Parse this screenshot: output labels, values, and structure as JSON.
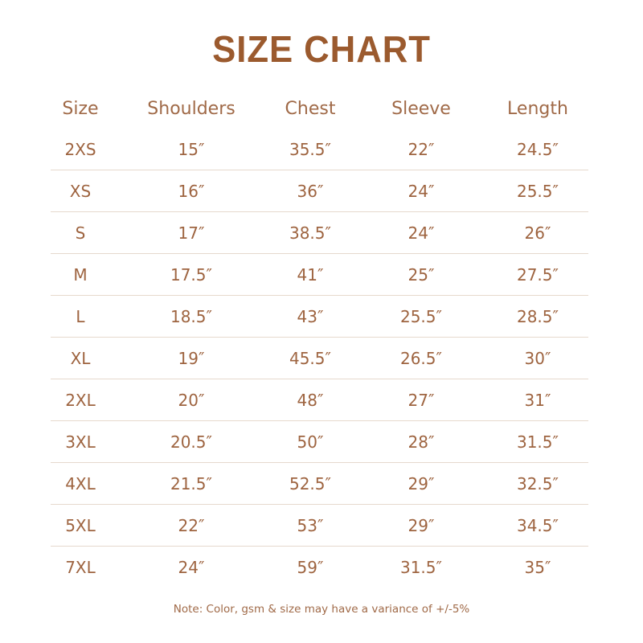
{
  "title": "SIZE CHART",
  "colors": {
    "text": "#9e6440",
    "title": "#9b5a2e",
    "divider": "#e6d9cd"
  },
  "table": {
    "headers": [
      "Size",
      "Shoulders",
      "Chest",
      "Sleeve",
      "Length"
    ],
    "rows": [
      [
        "2XS",
        "15″",
        "35.5″",
        "22″",
        "24.5″"
      ],
      [
        "XS",
        "16″",
        "36″",
        "24″",
        "25.5″"
      ],
      [
        "S",
        "17″",
        "38.5″",
        "24″",
        "26″"
      ],
      [
        "M",
        "17.5″",
        "41″",
        "25″",
        "27.5″"
      ],
      [
        "L",
        "18.5″",
        "43″",
        "25.5″",
        "28.5″"
      ],
      [
        "XL",
        "19″",
        "45.5″",
        "26.5″",
        "30″"
      ],
      [
        "2XL",
        "20″",
        "48″",
        "27″",
        "31″"
      ],
      [
        "3XL",
        "20.5″",
        "50″",
        "28″",
        "31.5″"
      ],
      [
        "4XL",
        "21.5″",
        "52.5″",
        "29″",
        "32.5″"
      ],
      [
        "5XL",
        "22″",
        "53″",
        "29″",
        "34.5″"
      ],
      [
        "7XL",
        "24″",
        "59″",
        "31.5″",
        "35″"
      ]
    ]
  },
  "note": "Note: Color, gsm & size may have a variance of +/-5%"
}
